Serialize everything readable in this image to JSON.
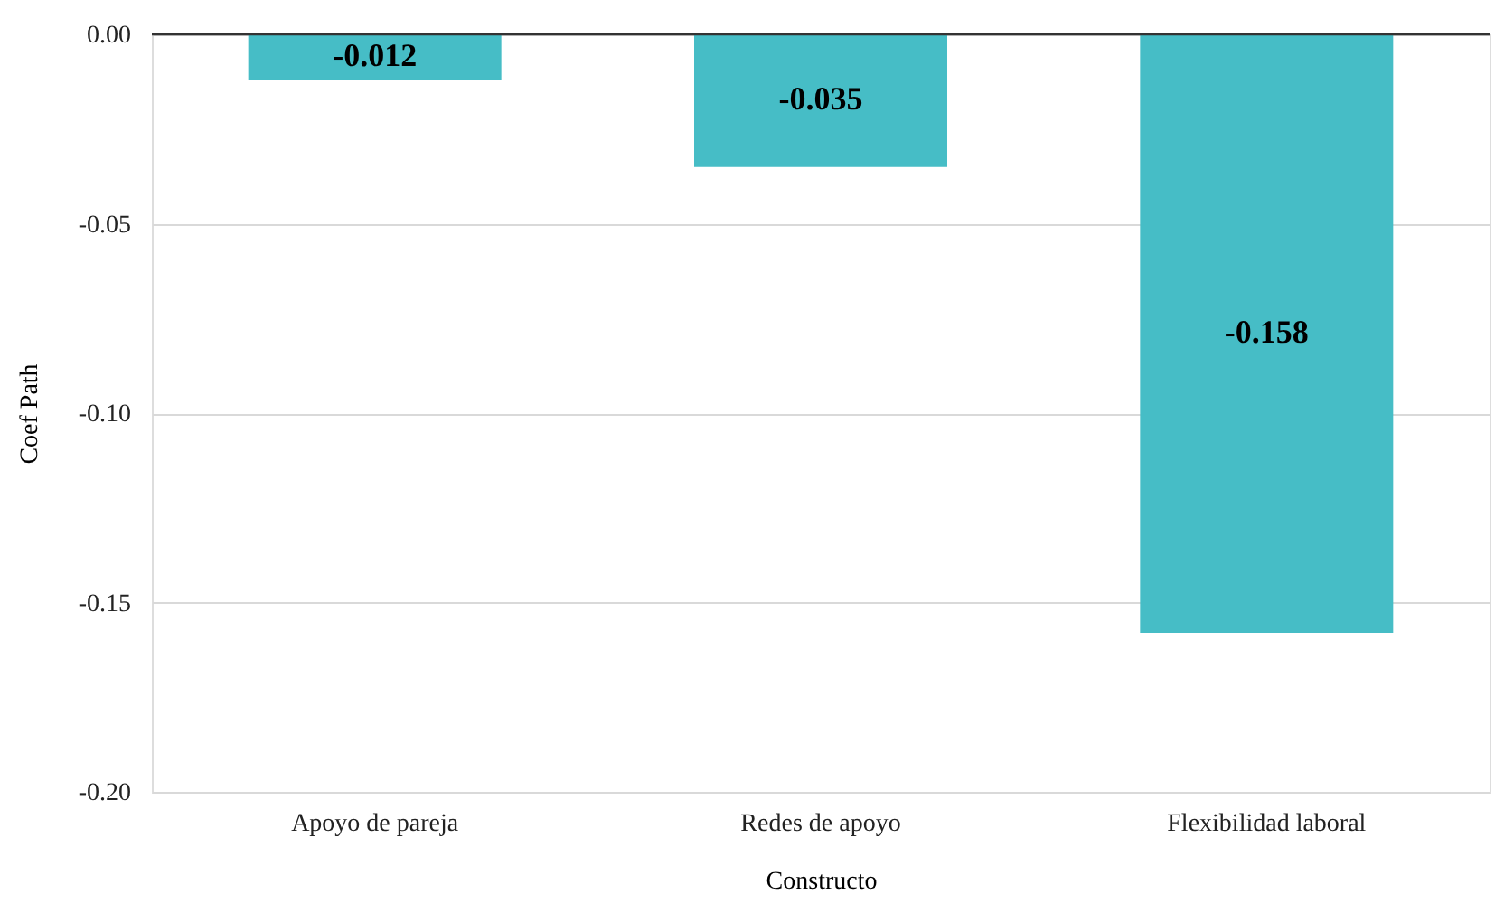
{
  "chart_data": {
    "type": "bar",
    "xlabel": "Constructo",
    "ylabel": "Coef Path",
    "categories": [
      "Apoyo de pareja",
      "Redes de apoyo",
      "Flexibilidad laboral"
    ],
    "values": [
      -0.012,
      -0.035,
      -0.158
    ],
    "color": "#46bdc6",
    "ylim": [
      -0.2,
      0
    ],
    "yticks": [
      {
        "value": -0.2,
        "label": "-0.20"
      },
      {
        "value": -0.15,
        "label": "-0.15"
      },
      {
        "value": -0.1,
        "label": "-0.10"
      },
      {
        "value": -0.05,
        "label": "-0.05"
      },
      {
        "value": 0,
        "label": "0.00"
      }
    ],
    "grid": "y",
    "data_labels": true,
    "ref_lines": [
      {
        "axis": "y",
        "value": 0,
        "color": "#333333"
      }
    ]
  }
}
